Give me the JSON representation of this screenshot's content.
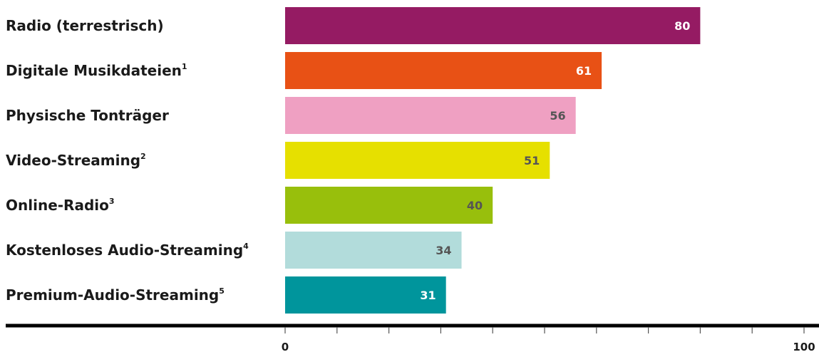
{
  "chart_data": {
    "type": "bar",
    "orientation": "horizontal",
    "categories": [
      {
        "label": "Radio (terrestrisch)",
        "sup": ""
      },
      {
        "label": "Digitale Musikdateien",
        "sup": "1"
      },
      {
        "label": "Physische Tonträger",
        "sup": ""
      },
      {
        "label": "Video-Streaming",
        "sup": "2"
      },
      {
        "label": "Online-Radio",
        "sup": "3"
      },
      {
        "label": "Kostenloses Audio-Streaming",
        "sup": "4"
      },
      {
        "label": "Premium-Audio-Streaming",
        "sup": "5"
      }
    ],
    "values": [
      80,
      61,
      56,
      51,
      40,
      34,
      31
    ],
    "colors": [
      "#951b63",
      "#e85115",
      "#efa0c2",
      "#e6e000",
      "#98bf0c",
      "#b2dcdb",
      "#00959c"
    ],
    "label_colors": [
      "#ffffff",
      "#ffffff",
      "#555555",
      "#555555",
      "#555555",
      "#555555",
      "#ffffff"
    ],
    "xlim": [
      0,
      100
    ],
    "x_tick_labels": [
      {
        "value": 0,
        "text": "0"
      },
      {
        "value": 100,
        "text": "100"
      }
    ],
    "minor_tick_step": 10,
    "grid": false,
    "legend": "none",
    "axis_color": "#000000"
  }
}
